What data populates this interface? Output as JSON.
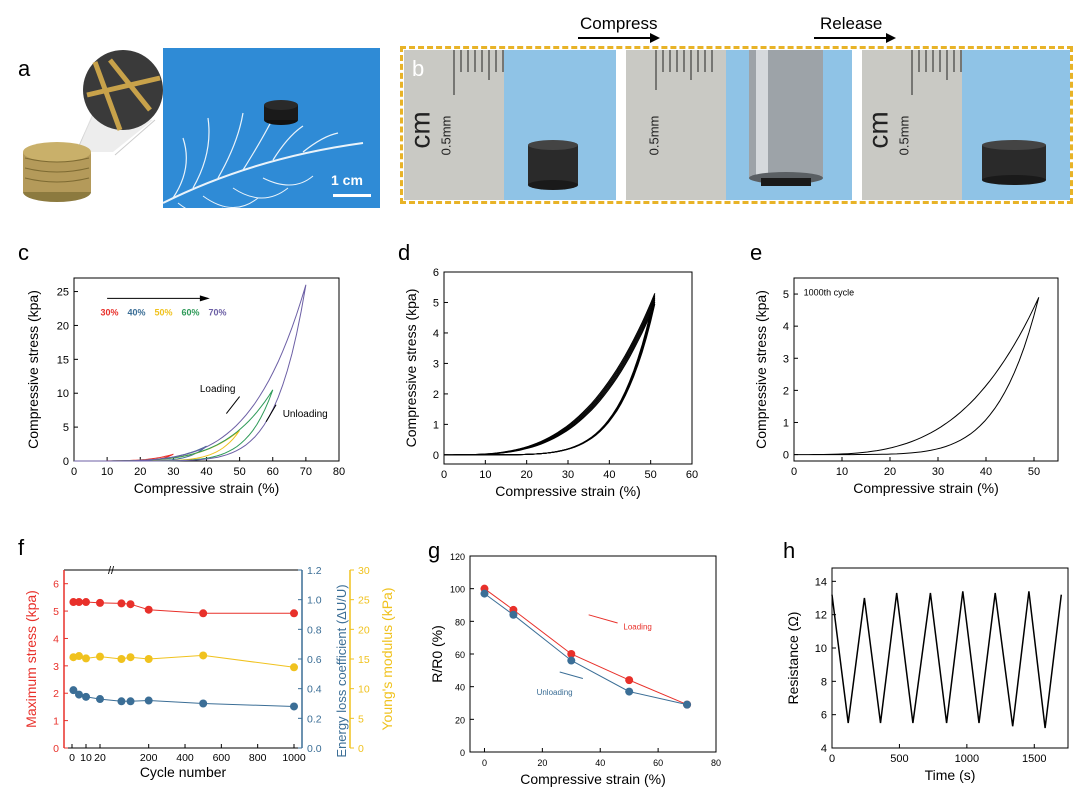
{
  "panel_labels": {
    "a": "a",
    "b": "b",
    "c": "c",
    "d": "d",
    "e": "e",
    "f": "f",
    "g": "g",
    "h": "h"
  },
  "colors": {
    "red": "#e8302a",
    "blue": "#3b6e96",
    "yellow": "#f0c21e",
    "green": "#2e9a58",
    "purple": "#6c5fa5",
    "photo_bg": "#2f8bd6",
    "ruler_bg": "#c9c9c4",
    "border_gold": "#e8b327"
  },
  "panel_a": {
    "scale_bar": "1 cm"
  },
  "panel_b": {
    "compress_label": "Compress",
    "release_label": "Release",
    "ruler_unit": "cm",
    "ruler_mark": "0.5mm"
  },
  "chart_data": [
    {
      "id": "c",
      "type": "line",
      "xlabel": "Compressive strain (%)",
      "ylabel": "Compressive stress (kpa)",
      "xlim": [
        0,
        80
      ],
      "ylim": [
        0,
        27
      ],
      "xticks": [
        "0",
        "10",
        "20",
        "30",
        "40",
        "50",
        "60",
        "70",
        "80"
      ],
      "yticks": [
        "0",
        "5",
        "10",
        "15",
        "20",
        "25"
      ],
      "legend": [
        "30%",
        "40%",
        "50%",
        "60%",
        "70%"
      ],
      "annotations": [
        "Loading",
        "Unloading"
      ],
      "series": [
        {
          "name": "30%",
          "max_strain": 30,
          "max_stress": 1.0
        },
        {
          "name": "40%",
          "max_strain": 40,
          "max_stress": 2.2
        },
        {
          "name": "50%",
          "max_strain": 50,
          "max_stress": 4.5
        },
        {
          "name": "60%",
          "max_strain": 60,
          "max_stress": 10.5
        },
        {
          "name": "70%",
          "max_strain": 70,
          "max_stress": 26
        }
      ]
    },
    {
      "id": "d",
      "type": "line",
      "xlabel": "Compressive strain (%)",
      "ylabel": "Compressive stress (kpa)",
      "xlim": [
        0,
        60
      ],
      "ylim": [
        -0.3,
        6
      ],
      "xticks": [
        "0",
        "10",
        "20",
        "30",
        "40",
        "50",
        "60"
      ],
      "yticks": [
        "0",
        "1",
        "2",
        "3",
        "4",
        "5",
        "6"
      ],
      "max_strain": 51,
      "max_stress": 5.3
    },
    {
      "id": "e",
      "type": "line",
      "xlabel": "Compressive strain (%)",
      "ylabel": "Compressive stress (kpa)",
      "xlim": [
        0,
        55
      ],
      "ylim": [
        -0.2,
        5.5
      ],
      "xticks": [
        "0",
        "10",
        "20",
        "30",
        "40",
        "50"
      ],
      "yticks": [
        "0",
        "1",
        "2",
        "3",
        "4",
        "5"
      ],
      "annotations": [
        "1000th cycle"
      ],
      "max_strain": 51,
      "max_stress": 4.9
    },
    {
      "id": "f",
      "type": "scatter",
      "xlabel": "Cycle number",
      "ylabels": [
        "Maximum stress (kpa)",
        "Energy loss coefficient (ΔU/U)",
        "Young's modulus (kPa)"
      ],
      "xticks": [
        "0",
        "10",
        "20",
        "200",
        "400",
        "600",
        "800",
        "1000"
      ],
      "y1ticks": [
        "0",
        "1",
        "2",
        "3",
        "4",
        "5",
        "6"
      ],
      "y2ticks": [
        "0.0",
        "0.2",
        "0.4",
        "0.6",
        "0.8",
        "1.0",
        "1.2"
      ],
      "y3ticks": [
        "0",
        "5",
        "10",
        "15",
        "20",
        "25",
        "30"
      ],
      "x": [
        1,
        5,
        10,
        20,
        50,
        100,
        200,
        500,
        1000
      ],
      "series": [
        {
          "name": "Maximum stress",
          "axis": "left",
          "values": [
            5.33,
            5.33,
            5.33,
            5.3,
            5.28,
            5.25,
            5.05,
            4.92,
            4.92
          ]
        },
        {
          "name": "Energy loss coefficient",
          "axis": "middle",
          "values": [
            0.39,
            0.36,
            0.345,
            0.33,
            0.315,
            0.315,
            0.32,
            0.3,
            0.28
          ]
        },
        {
          "name": "Young's modulus",
          "axis": "right",
          "values": [
            15.3,
            15.5,
            15.1,
            15.4,
            15.0,
            15.3,
            15.0,
            15.6,
            13.6
          ]
        }
      ]
    },
    {
      "id": "g",
      "type": "scatter",
      "xlabel": "Compressive strain (%)",
      "ylabel": "R/R0 (%)",
      "xlim": [
        -5,
        80
      ],
      "ylim": [
        0,
        120
      ],
      "xticks": [
        "0",
        "20",
        "40",
        "60",
        "80"
      ],
      "yticks": [
        "0",
        "20",
        "40",
        "60",
        "80",
        "100",
        "120"
      ],
      "annotations": [
        "Loading",
        "Unloading"
      ],
      "x": [
        0,
        10,
        30,
        50,
        70
      ],
      "series": [
        {
          "name": "Loading",
          "values": [
            100,
            87,
            60,
            44,
            29
          ]
        },
        {
          "name": "Unloading",
          "values": [
            97,
            84,
            56,
            37,
            29
          ]
        }
      ]
    },
    {
      "id": "h",
      "type": "line",
      "xlabel": "Time (s)",
      "ylabel": "Resistance (Ω)",
      "xlim": [
        0,
        1750
      ],
      "ylim": [
        4,
        14.8
      ],
      "xticks": [
        "0",
        "500",
        "1000",
        "1500"
      ],
      "yticks": [
        "4",
        "6",
        "8",
        "10",
        "12",
        "14"
      ],
      "peaks": [
        {
          "t": 0,
          "r": 13.2
        },
        {
          "t": 240,
          "r": 13.0
        },
        {
          "t": 480,
          "r": 13.3
        },
        {
          "t": 730,
          "r": 13.3
        },
        {
          "t": 970,
          "r": 13.4
        },
        {
          "t": 1210,
          "r": 13.3
        },
        {
          "t": 1460,
          "r": 13.4
        },
        {
          "t": 1700,
          "r": 13.2
        }
      ],
      "valleys": [
        {
          "t": 120,
          "r": 5.5
        },
        {
          "t": 360,
          "r": 5.5
        },
        {
          "t": 600,
          "r": 5.5
        },
        {
          "t": 850,
          "r": 5.5
        },
        {
          "t": 1090,
          "r": 5.5
        },
        {
          "t": 1340,
          "r": 5.3
        },
        {
          "t": 1580,
          "r": 5.2
        }
      ]
    }
  ]
}
